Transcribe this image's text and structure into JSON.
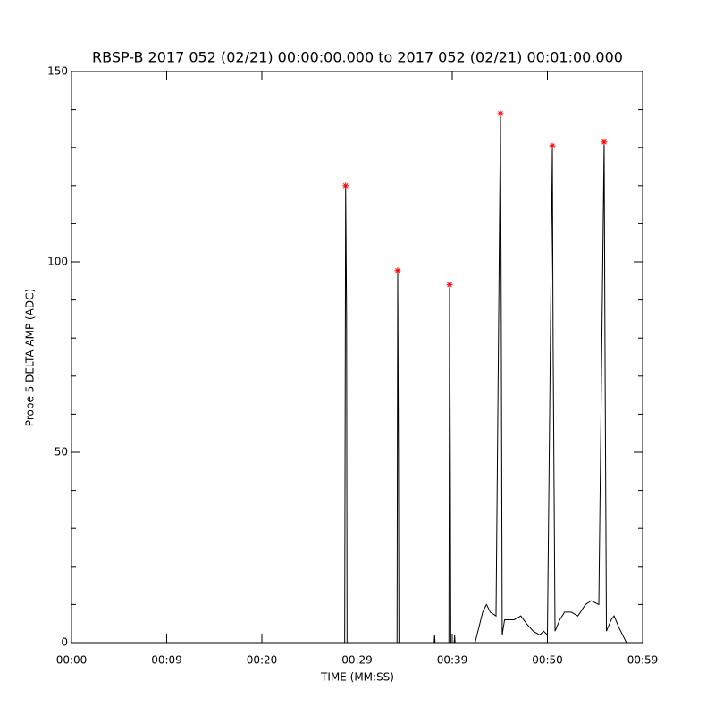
{
  "chart_data": {
    "type": "line",
    "title": "RBSP-B 2017 052 (02/21) 00:00:00.000 to 2017 052 (02/21) 00:01:00.000",
    "x_label": "TIME (MM:SS)",
    "y_label": "Probe 5 DELTA AMP (ADC)",
    "xlim": [
      0,
      60
    ],
    "xticks": [
      {
        "value": 0,
        "label": "00:00"
      },
      {
        "value": 10,
        "label": "00:09"
      },
      {
        "value": 20,
        "label": "00:20"
      },
      {
        "value": 30,
        "label": "00:29"
      },
      {
        "value": 40,
        "label": "00:39"
      },
      {
        "value": 50,
        "label": "00:50"
      },
      {
        "value": 60,
        "label": "00:59"
      }
    ],
    "ylim": [
      0,
      150
    ],
    "yticks": [
      0,
      50,
      100,
      150
    ],
    "yminorticks": [
      10,
      20,
      30,
      40,
      60,
      70,
      80,
      90,
      110,
      120,
      130,
      140
    ],
    "series": [
      {
        "color": "#000000",
        "style": "line",
        "x": [
          0,
          28.7,
          28.8,
          28.9,
          28.95,
          34.2,
          34.27,
          34.35,
          34.4,
          38.1,
          38.15,
          38.2,
          39.65,
          39.72,
          39.8,
          39.85,
          40.2,
          40.25,
          40.3,
          42.4,
          42.8,
          43.2,
          43.6,
          44.0,
          44.6,
          45.07,
          45.15,
          45.25,
          45.5,
          46.5,
          47.2,
          47.8,
          48.5,
          49.2,
          49.6,
          50.0,
          50.52,
          50.6,
          50.8,
          51.3,
          51.8,
          52.5,
          53.2,
          54.0,
          54.6,
          55.4,
          55.96,
          56.05,
          56.2,
          56.7,
          57.0,
          57.5,
          58.3
        ],
        "values": [
          0,
          0,
          120,
          86,
          0,
          0,
          97.7,
          50,
          0,
          0,
          2,
          0,
          0,
          94,
          47,
          0,
          0,
          2,
          0,
          0,
          4,
          8,
          10,
          8,
          7,
          139,
          87,
          2,
          6,
          6,
          7,
          5,
          3,
          2,
          3,
          2,
          130.5,
          78,
          3,
          6,
          8,
          8,
          7,
          10,
          11,
          10,
          131.5,
          77,
          3,
          6,
          7,
          4,
          0
        ]
      },
      {
        "color": "#ff0000",
        "style": "asterisk",
        "x": [
          28.8,
          34.27,
          39.72,
          45.07,
          50.52,
          55.96
        ],
        "values": [
          120,
          97.7,
          94,
          139,
          130.5,
          131.5
        ]
      }
    ]
  }
}
